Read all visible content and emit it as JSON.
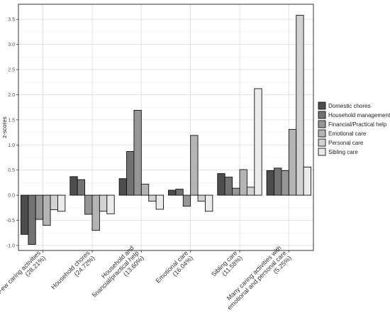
{
  "chart_data": {
    "type": "bar",
    "title": "",
    "xlabel": "",
    "ylabel": "z-scores",
    "ylim": [
      -1.1,
      3.8
    ],
    "yticks": [
      "-1.0",
      "-0.5",
      "0.0",
      "0.5",
      "1.0",
      "1.5",
      "2.0",
      "2.5",
      "3.0",
      "3.5"
    ],
    "categories": [
      {
        "line1": "Few caring activities",
        "line2": "(28.21%)"
      },
      {
        "line1": "Household chores",
        "line2": "(24.72%)"
      },
      {
        "line1": "Household and",
        "line2": "financial/practical help",
        "line3": "(13.60%)"
      },
      {
        "line1": "Emotional care",
        "line2": "(16.04%)"
      },
      {
        "line1": "Sibling care",
        "line2": "(11.58%)"
      },
      {
        "line1": "Many caring activities with",
        "line2": "emotional and personal care",
        "line3": "(5.25%)"
      }
    ],
    "series": [
      {
        "name": "Domestic chores",
        "color": "#4d4d4d",
        "values": [
          -0.78,
          0.37,
          0.33,
          0.1,
          0.43,
          0.49
        ]
      },
      {
        "name": "Household management",
        "color": "#727272",
        "values": [
          -0.98,
          0.31,
          0.87,
          0.12,
          0.36,
          0.54
        ]
      },
      {
        "name": "Financial/Practical help",
        "color": "#969696",
        "values": [
          -0.48,
          -0.38,
          1.69,
          -0.22,
          0.14,
          0.49
        ]
      },
      {
        "name": "Emotional care",
        "color": "#b4b4b4",
        "values": [
          -0.6,
          -0.7,
          0.22,
          1.19,
          0.51,
          1.31
        ]
      },
      {
        "name": "Personal care",
        "color": "#d2d2d2",
        "values": [
          -0.29,
          -0.32,
          -0.12,
          -0.12,
          0.16,
          3.58
        ]
      },
      {
        "name": "Sibling care",
        "color": "#ebebeb",
        "values": [
          -0.32,
          -0.37,
          -0.28,
          -0.32,
          2.12,
          0.56
        ]
      }
    ],
    "grid": true,
    "legend_position": "right"
  }
}
